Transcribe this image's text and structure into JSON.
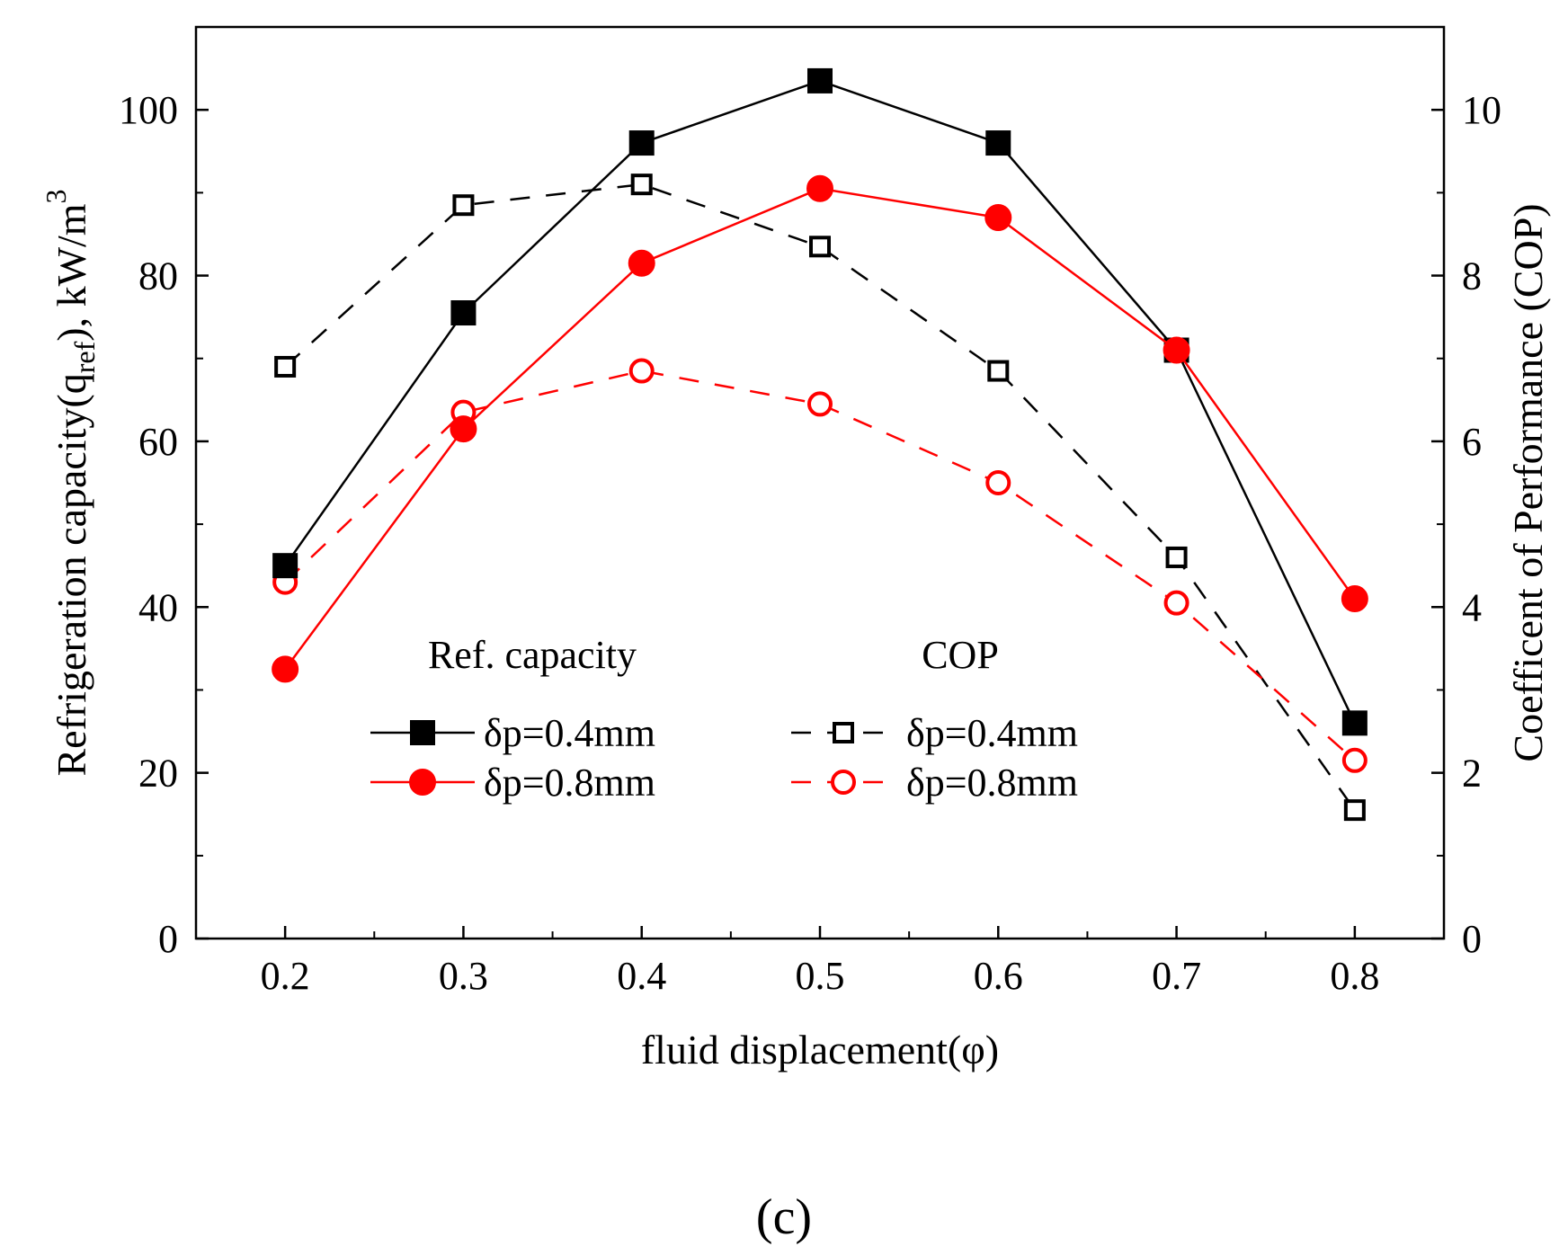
{
  "chart_data": {
    "type": "line",
    "x": [
      0.2,
      0.3,
      0.4,
      0.5,
      0.6,
      0.7,
      0.8
    ],
    "xlabel": "fluid displacement(φ)",
    "xlim": [
      0.15,
      0.85
    ],
    "x_ticks": [
      "0.2",
      "0.3",
      "0.4",
      "0.5",
      "0.6",
      "0.7",
      "0.8"
    ],
    "ylabel_left": {
      "prefix": "Refrigeration capacity(q",
      "subscript": "ref",
      "middle": "), kW/m",
      "superscript": "3"
    },
    "ylim_left": [
      0,
      110
    ],
    "y_ticks_left": [
      "0",
      "20",
      "40",
      "60",
      "80",
      "100"
    ],
    "ylabel_right": "Coefficent of Performance (COP)",
    "ylim_right": [
      0,
      11
    ],
    "y_ticks_right": [
      "0",
      "2",
      "4",
      "6",
      "8",
      "10"
    ],
    "series": [
      {
        "name": "δp=0.4mm",
        "group": "Ref. capacity",
        "axis": "left",
        "color": "#000000",
        "marker": "square-filled",
        "dash": "solid",
        "values": [
          45,
          75.5,
          96,
          103.5,
          96,
          71,
          26
        ]
      },
      {
        "name": "δp=0.8mm",
        "group": "Ref. capacity",
        "axis": "left",
        "color": "#ff0000",
        "marker": "circle-filled",
        "dash": "solid",
        "values": [
          32.5,
          61.5,
          81.5,
          90.5,
          87,
          71,
          41
        ]
      },
      {
        "name": "δp=0.4mm",
        "group": "COP",
        "axis": "right",
        "color": "#000000",
        "marker": "square-open",
        "dash": "dashed",
        "values": [
          6.9,
          8.85,
          9.1,
          8.35,
          6.85,
          4.6,
          1.55
        ]
      },
      {
        "name": "δp=0.8mm",
        "group": "COP",
        "axis": "right",
        "color": "#ff0000",
        "marker": "circle-open",
        "dash": "dashed",
        "values": [
          4.3,
          6.35,
          6.85,
          6.45,
          5.5,
          4.05,
          2.15
        ]
      }
    ],
    "legend": {
      "placement": "bottom-center",
      "group_titles": [
        "Ref. capacity",
        "COP"
      ]
    },
    "caption": "(c)"
  }
}
